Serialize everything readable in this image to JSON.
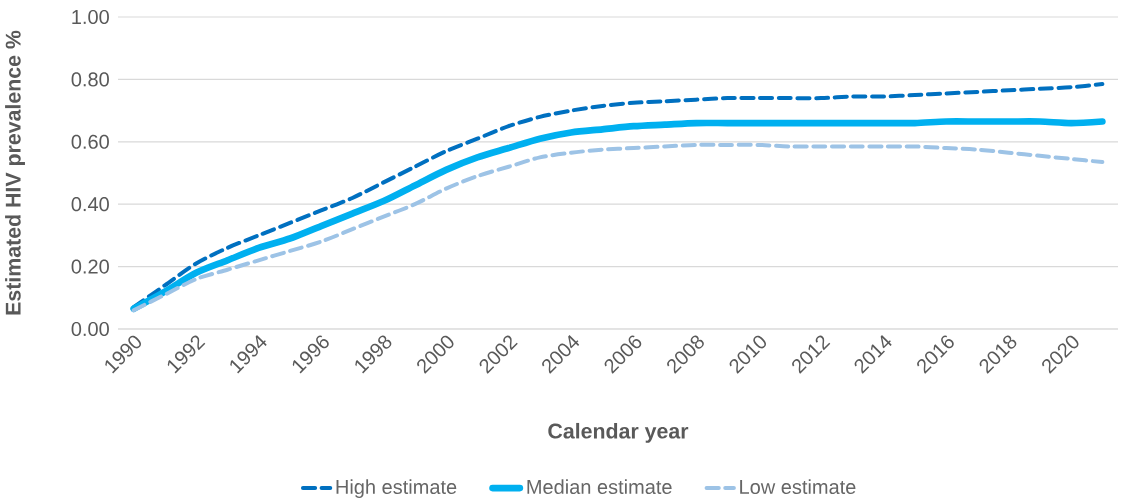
{
  "chart_data": {
    "type": "line",
    "xlabel": "Calendar year",
    "ylabel": "Estimated HIV prevalence %",
    "x": [
      1990,
      1991,
      1992,
      1993,
      1994,
      1995,
      1996,
      1997,
      1998,
      1999,
      2000,
      2001,
      2002,
      2003,
      2004,
      2005,
      2006,
      2007,
      2008,
      2009,
      2010,
      2011,
      2012,
      2013,
      2014,
      2015,
      2016,
      2017,
      2018,
      2019,
      2020,
      2021
    ],
    "series": [
      {
        "name": "High estimate",
        "color": "#0070c0",
        "line_style": "dashed",
        "values": [
          0.07,
          0.14,
          0.21,
          0.26,
          0.3,
          0.34,
          0.38,
          0.42,
          0.47,
          0.52,
          0.57,
          0.61,
          0.65,
          0.68,
          0.7,
          0.715,
          0.725,
          0.73,
          0.735,
          0.74,
          0.74,
          0.74,
          0.74,
          0.745,
          0.745,
          0.75,
          0.755,
          0.76,
          0.765,
          0.77,
          0.775,
          0.785
        ]
      },
      {
        "name": "Median estimate",
        "color": "#00b0f0",
        "line_style": "solid",
        "values": [
          0.065,
          0.12,
          0.18,
          0.22,
          0.26,
          0.29,
          0.33,
          0.37,
          0.41,
          0.46,
          0.51,
          0.55,
          0.58,
          0.61,
          0.63,
          0.64,
          0.65,
          0.655,
          0.66,
          0.66,
          0.66,
          0.66,
          0.66,
          0.66,
          0.66,
          0.66,
          0.665,
          0.665,
          0.665,
          0.665,
          0.66,
          0.665
        ]
      },
      {
        "name": "Low estimate",
        "color": "#9dc3e6",
        "line_style": "dashed",
        "values": [
          0.06,
          0.11,
          0.16,
          0.19,
          0.22,
          0.25,
          0.28,
          0.32,
          0.36,
          0.4,
          0.45,
          0.49,
          0.52,
          0.55,
          0.565,
          0.575,
          0.58,
          0.585,
          0.59,
          0.59,
          0.59,
          0.585,
          0.585,
          0.585,
          0.585,
          0.585,
          0.58,
          0.575,
          0.565,
          0.555,
          0.545,
          0.535
        ]
      }
    ],
    "xlim": [
      1989.5,
      2021.5
    ],
    "xticks": [
      1990,
      1992,
      1994,
      1996,
      1998,
      2000,
      2002,
      2004,
      2006,
      2008,
      2010,
      2012,
      2014,
      2016,
      2018,
      2020
    ],
    "ylim": [
      0,
      1
    ],
    "yticks": [
      {
        "value": 0,
        "label": "0.00"
      },
      {
        "value": 0.2,
        "label": "0.20"
      },
      {
        "value": 0.4,
        "label": "0.40"
      },
      {
        "value": 0.6,
        "label": "0.60"
      },
      {
        "value": 0.8,
        "label": "0.80"
      },
      {
        "value": 1,
        "label": "1.00"
      }
    ],
    "grid": "y",
    "legend": "bottom",
    "marker": "none"
  }
}
